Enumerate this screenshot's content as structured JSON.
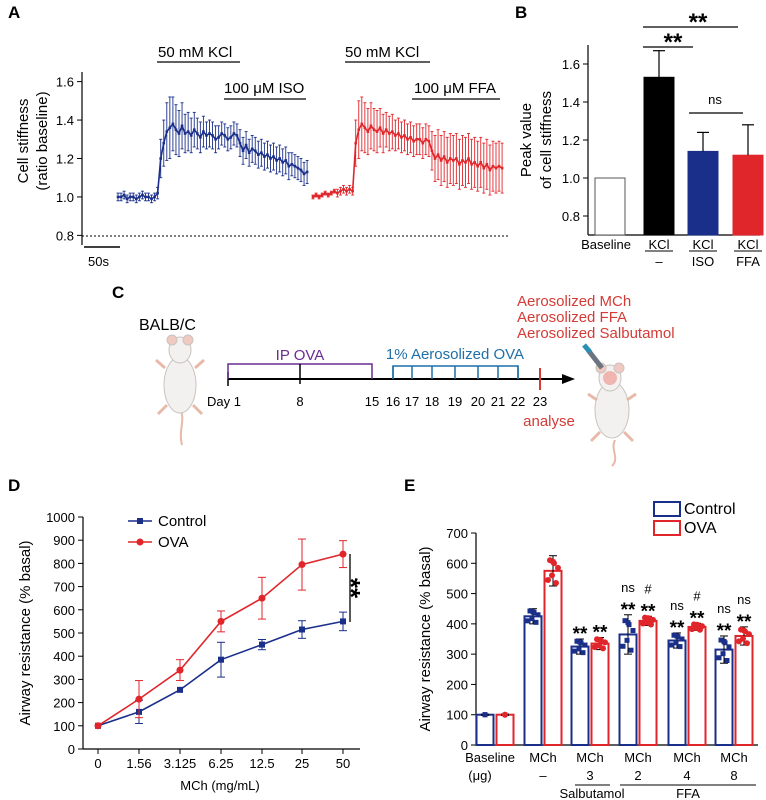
{
  "colors": {
    "control": "#1a2f8a",
    "ova": "#e0262b",
    "kcl": "#000000",
    "iso": "#1a2f8a",
    "ffa": "#e0262b",
    "baseline": "#ffffff",
    "protocol_ip": "#6a2c91",
    "protocol_aerosol": "#1f6fa8",
    "protocol_analyse": "#d33b36"
  },
  "panel_labels": {
    "a": "A",
    "b": "B",
    "c": "C",
    "d": "D",
    "e": "E"
  },
  "chart_data": [
    {
      "id": "A",
      "type": "line",
      "title": "",
      "ylabel": "Cell stiffness (ratio baseline)",
      "ylabel_lines": [
        "Cell stiffness",
        "(ratio baseline)"
      ],
      "ylim": [
        0.75,
        1.65
      ],
      "yticks": [
        0.8,
        1.0,
        1.2,
        1.4,
        1.6
      ],
      "ytick_labels": [
        "0.8",
        "1.0",
        "1.2",
        "1.4",
        "1.6"
      ],
      "scale_bar_label": "50s",
      "dotted_reference": 0.8,
      "annotations": [
        "50 mM KCl",
        "100 μM ISO",
        "50 mM KCl",
        "100 μM FFA"
      ],
      "series": [
        {
          "name": "KCl then ISO",
          "color": "#1a2f8a",
          "x": [
            0,
            1,
            2,
            3,
            4,
            5,
            6,
            7,
            8,
            9,
            10,
            11,
            12,
            13,
            14,
            15,
            16,
            17,
            18,
            19,
            20,
            21,
            22,
            23,
            24,
            25,
            26,
            27,
            28,
            29,
            30,
            31,
            32,
            33,
            34,
            35,
            36,
            37,
            38,
            39,
            40,
            41,
            42,
            43,
            44,
            45,
            46,
            47,
            48,
            49,
            50,
            51,
            52,
            53,
            54,
            55,
            56,
            57,
            58,
            59,
            60,
            61,
            62
          ],
          "values": [
            1.0,
            1.0,
            1.01,
            0.99,
            1.0,
            1.0,
            0.99,
            1.0,
            1.01,
            1.0,
            1.0,
            0.99,
            1.0,
            1.02,
            1.2,
            1.28,
            1.34,
            1.36,
            1.38,
            1.35,
            1.33,
            1.37,
            1.33,
            1.34,
            1.32,
            1.35,
            1.33,
            1.31,
            1.34,
            1.32,
            1.33,
            1.32,
            1.3,
            1.31,
            1.33,
            1.32,
            1.3,
            1.31,
            1.33,
            1.32,
            1.28,
            1.24,
            1.27,
            1.23,
            1.25,
            1.24,
            1.22,
            1.23,
            1.21,
            1.22,
            1.2,
            1.21,
            1.19,
            1.2,
            1.18,
            1.19,
            1.16,
            1.17,
            1.16,
            1.15,
            1.14,
            1.12,
            1.13
          ],
          "errors": [
            0.02,
            0.02,
            0.02,
            0.02,
            0.02,
            0.02,
            0.02,
            0.02,
            0.02,
            0.02,
            0.02,
            0.02,
            0.02,
            0.03,
            0.1,
            0.12,
            0.15,
            0.16,
            0.14,
            0.13,
            0.12,
            0.12,
            0.1,
            0.1,
            0.09,
            0.09,
            0.08,
            0.08,
            0.08,
            0.07,
            0.07,
            0.07,
            0.07,
            0.06,
            0.06,
            0.06,
            0.06,
            0.06,
            0.06,
            0.06,
            0.07,
            0.07,
            0.07,
            0.07,
            0.07,
            0.07,
            0.07,
            0.07,
            0.07,
            0.07,
            0.07,
            0.07,
            0.07,
            0.07,
            0.07,
            0.07,
            0.07,
            0.06,
            0.06,
            0.06,
            0.06,
            0.06,
            0.06
          ]
        },
        {
          "name": "KCl then FFA",
          "color": "#e0262b",
          "x": [
            0,
            1,
            2,
            3,
            4,
            5,
            6,
            7,
            8,
            9,
            10,
            11,
            12,
            13,
            14,
            15,
            16,
            17,
            18,
            19,
            20,
            21,
            22,
            23,
            24,
            25,
            26,
            27,
            28,
            29,
            30,
            31,
            32,
            33,
            34,
            35,
            36,
            37,
            38,
            39,
            40,
            41,
            42,
            43,
            44,
            45,
            46,
            47,
            48,
            49,
            50,
            51,
            52,
            53,
            54,
            55,
            56,
            57,
            58,
            59,
            60,
            61,
            62
          ],
          "values": [
            1.0,
            1.01,
            1.0,
            1.01,
            1.02,
            1.01,
            1.02,
            1.03,
            1.02,
            1.03,
            1.04,
            1.03,
            1.04,
            1.03,
            1.28,
            1.35,
            1.38,
            1.36,
            1.34,
            1.37,
            1.35,
            1.34,
            1.36,
            1.33,
            1.35,
            1.33,
            1.34,
            1.32,
            1.33,
            1.31,
            1.32,
            1.3,
            1.31,
            1.29,
            1.3,
            1.3,
            1.28,
            1.3,
            1.29,
            1.24,
            1.2,
            1.22,
            1.19,
            1.21,
            1.18,
            1.2,
            1.19,
            1.2,
            1.17,
            1.19,
            1.18,
            1.2,
            1.17,
            1.18,
            1.16,
            1.18,
            1.15,
            1.17,
            1.14,
            1.16,
            1.15,
            1.16,
            1.15
          ],
          "errors": [
            0.01,
            0.01,
            0.01,
            0.01,
            0.01,
            0.01,
            0.01,
            0.01,
            0.02,
            0.02,
            0.02,
            0.02,
            0.02,
            0.02,
            0.12,
            0.15,
            0.14,
            0.13,
            0.12,
            0.12,
            0.11,
            0.11,
            0.1,
            0.1,
            0.09,
            0.09,
            0.09,
            0.08,
            0.08,
            0.08,
            0.08,
            0.08,
            0.08,
            0.08,
            0.08,
            0.08,
            0.08,
            0.08,
            0.08,
            0.1,
            0.12,
            0.13,
            0.13,
            0.13,
            0.13,
            0.13,
            0.13,
            0.13,
            0.13,
            0.13,
            0.13,
            0.13,
            0.13,
            0.13,
            0.13,
            0.13,
            0.13,
            0.13,
            0.13,
            0.13,
            0.13,
            0.13,
            0.13
          ]
        }
      ]
    },
    {
      "id": "B",
      "type": "bar",
      "ylabel": "Peak value of cell stiffness",
      "ylabel_lines": [
        "Peak value",
        "of cell stiffness"
      ],
      "ylim": [
        0.7,
        1.7
      ],
      "yticks": [
        0.8,
        1.0,
        1.2,
        1.4,
        1.6
      ],
      "ytick_labels": [
        "0.8",
        "1.0",
        "1.2",
        "1.4",
        "1.6"
      ],
      "categories": [
        "Baseline",
        "KCl",
        "KCl",
        "KCl"
      ],
      "sub_labels": [
        "",
        "–",
        "ISO",
        "FFA"
      ],
      "values": [
        1.0,
        1.53,
        1.14,
        1.12
      ],
      "errors": [
        0.0,
        0.14,
        0.1,
        0.16
      ],
      "bar_colors": [
        "#ffffff",
        "#000000",
        "#1a2f8a",
        "#e0262b"
      ],
      "significance": [
        {
          "label": "**",
          "between": [
            1,
            3
          ]
        },
        {
          "label": "**",
          "between": [
            1,
            2
          ]
        },
        {
          "label": "ns",
          "between": [
            2,
            3
          ]
        }
      ]
    },
    {
      "id": "D",
      "type": "line",
      "xlabel": "MCh (mg/mL)",
      "ylabel": "Airway resistance  (% basal)",
      "ylim": [
        0,
        1000
      ],
      "yticks": [
        0,
        100,
        200,
        300,
        400,
        500,
        600,
        700,
        800,
        900,
        1000
      ],
      "ytick_labels": [
        "0",
        "100",
        "200",
        "300",
        "400",
        "500",
        "600",
        "700",
        "800",
        "900",
        "1000"
      ],
      "categories": [
        "0",
        "1.56",
        "3.125",
        "6.25",
        "12.5",
        "25",
        "50"
      ],
      "significance": "**",
      "legend_position": "top-left",
      "series": [
        {
          "name": "Control",
          "color": "#1a2f8a",
          "marker": "square",
          "values": [
            100,
            160,
            255,
            385,
            450,
            515,
            550
          ],
          "errors": [
            0,
            50,
            0,
            75,
            22,
            38,
            40
          ]
        },
        {
          "name": "OVA",
          "color": "#e0262b",
          "marker": "circle",
          "values": [
            100,
            215,
            340,
            550,
            650,
            795,
            840
          ],
          "errors": [
            0,
            80,
            45,
            45,
            90,
            110,
            58
          ]
        }
      ]
    },
    {
      "id": "E",
      "type": "bar",
      "ylabel": "Airway resistance  (% basal)",
      "ylim": [
        0,
        700
      ],
      "yticks": [
        0,
        100,
        200,
        300,
        400,
        500,
        600,
        700
      ],
      "ytick_labels": [
        "0",
        "100",
        "200",
        "300",
        "400",
        "500",
        "600",
        "700"
      ],
      "unit_label": "(μg)",
      "categories": [
        "Baseline",
        "MCh",
        "MCh",
        "MCh",
        "MCh",
        "MCh"
      ],
      "doses": [
        "",
        "–",
        "3",
        "2",
        "4",
        "8"
      ],
      "group_labels": [
        "Salbutamol",
        "FFA"
      ],
      "legend_position": "top-right",
      "series": [
        {
          "name": "Control",
          "color": "#1a2f8a",
          "values": [
            100,
            425,
            325,
            365,
            345,
            315
          ],
          "errors": [
            2,
            25,
            25,
            65,
            25,
            45
          ]
        },
        {
          "name": "OVA",
          "color": "#e0262b",
          "values": [
            100,
            575,
            335,
            410,
            390,
            360
          ],
          "errors": [
            2,
            50,
            20,
            15,
            12,
            30
          ]
        }
      ],
      "significance": [
        {
          "group": 2,
          "control": [
            "**"
          ],
          "ova": [
            "**"
          ]
        },
        {
          "group": 3,
          "control": [
            "ns",
            "**"
          ],
          "ova": [
            "#",
            "**"
          ]
        },
        {
          "group": 4,
          "control": [
            "ns",
            "**"
          ],
          "ova": [
            "#",
            "**"
          ]
        },
        {
          "group": 5,
          "control": [
            "ns",
            "**"
          ],
          "ova": [
            "ns",
            "**"
          ]
        }
      ]
    }
  ],
  "protocol": {
    "strain_label": "BALB/C",
    "ip_label": "IP OVA",
    "aerosol_label": "1% Aerosolized OVA",
    "day_prefix": "Day 1",
    "days": [
      "8",
      "15",
      "16",
      "17",
      "18",
      "19",
      "20",
      "21",
      "22",
      "23"
    ],
    "treatments": [
      "Aerosolized MCh",
      "Aerosolized FFA",
      "Aerosolized Salbutamol"
    ],
    "analyse_label": "analyse"
  }
}
